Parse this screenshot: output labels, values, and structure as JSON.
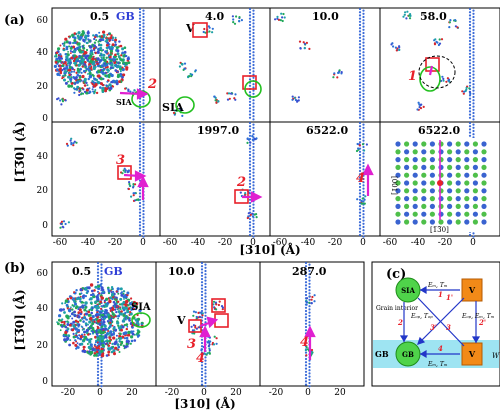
{
  "figure": {
    "panel_labels": {
      "a": "(a)",
      "b": "(b)",
      "c": "(c)"
    },
    "panel_a": {
      "ylabel": "[1̅3̅0] (Å)",
      "xlabel": "[310] (Å)",
      "x_ticks": [
        "-60",
        "-40",
        "-20",
        "0"
      ],
      "y_ticks_top": [
        "0",
        "20",
        "40",
        "60"
      ],
      "y_ticks_bottom": [
        "0",
        "20",
        "40"
      ],
      "cells": [
        {
          "time": "0.5",
          "extra": "GB",
          "sia": "SIA",
          "markers": [
            "2"
          ]
        },
        {
          "time": "4.0",
          "extra": "V",
          "sia": "SIA",
          "markers": []
        },
        {
          "time": "10.0",
          "extra": "",
          "sia": "",
          "markers": []
        },
        {
          "time": "58.0",
          "extra": "",
          "sia": "",
          "markers": [
            "1"
          ]
        },
        {
          "time": "672.0",
          "extra": "",
          "sia": "",
          "markers": [
            "3"
          ]
        },
        {
          "time": "1997.0",
          "extra": "",
          "sia": "",
          "markers": [
            "2"
          ]
        },
        {
          "time": "6522.0",
          "extra": "",
          "sia": "",
          "markers": [
            "4"
          ]
        },
        {
          "time": "6522.0",
          "extra": "",
          "sia": "",
          "markers": []
        }
      ],
      "inset_axis_v": "[001]",
      "inset_axis_h": "[1̅3̅0]"
    },
    "panel_b": {
      "ylabel": "[1̅3̅0] (Å)",
      "xlabel": "[310] (Å)",
      "x_ticks": [
        "-20",
        "0",
        "20"
      ],
      "y_ticks": [
        "0",
        "20",
        "40",
        "60"
      ],
      "cells": [
        {
          "time": "0.5",
          "extra": "GB",
          "sia": "SIA",
          "v": "",
          "markers": []
        },
        {
          "time": "10.0",
          "extra": "",
          "sia": "",
          "v": "V",
          "markers": [
            "3",
            "4"
          ]
        },
        {
          "time": "287.0",
          "extra": "",
          "sia": "",
          "v": "",
          "markers": [
            "4"
          ]
        }
      ]
    },
    "panel_c": {
      "sia_top": "SIA",
      "v_top": "V",
      "sia_bottom": "GB",
      "v_bottom": "V",
      "grain_interior": "Grain interior",
      "gb_label": "GB",
      "w_label": "W",
      "arrow_labels": [
        "1",
        "2",
        "3",
        "4",
        "1'",
        "2'",
        "3'"
      ],
      "energy_top": "Eₘ, Tₘ",
      "energy_bottom": "Eₘ, Tₘ",
      "energy_left": "Eₒₚ, Tₒₚ",
      "energy_right": "Eₒₚ, Eₘ, Tₘ"
    }
  }
}
